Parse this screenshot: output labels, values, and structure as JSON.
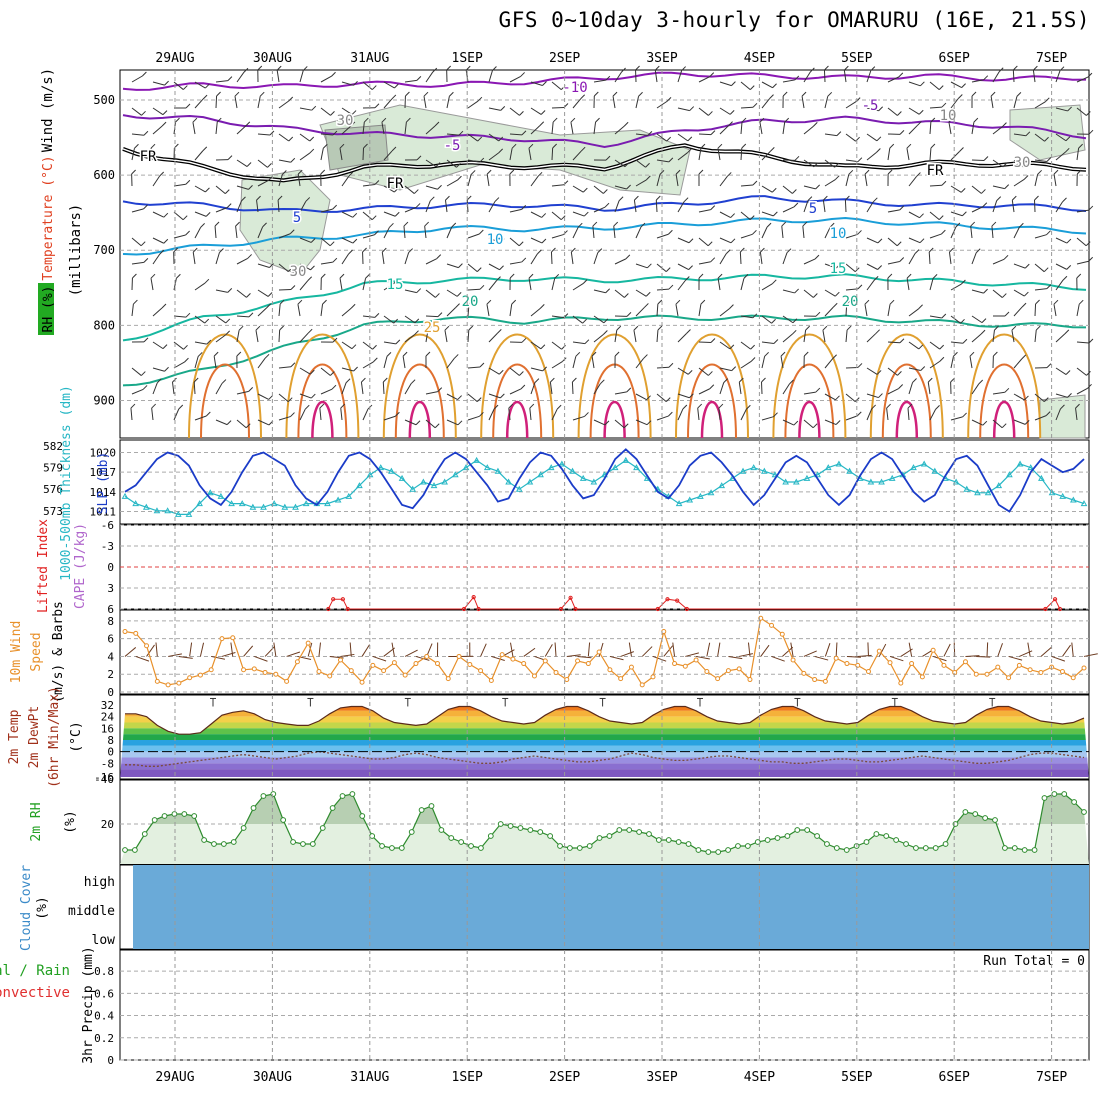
{
  "title": "GFS 0~10day 3-hourly for OMARURU (16E, 21.5S)",
  "days": [
    "29AUG",
    "30AUG",
    "31AUG",
    "1SEP",
    "2SEP",
    "3SEP",
    "4SEP",
    "5SEP",
    "6SEP",
    "7SEP"
  ],
  "colors": {
    "isotherm_minus10": "#8a17b3",
    "isotherm_minus5": "#7a1cb0",
    "isotherm_5": "#2040d0",
    "isotherm_10": "#1a9ed8",
    "isotherm_15": "#16b7a0",
    "isotherm_20": "#19a889",
    "isotherm_25": "#e0a030",
    "thickness": "#27b7c5",
    "slp": "#1b3cc8",
    "wind10m": "#e8902a",
    "lifted_index": "#e02020",
    "rh2m": "#2e8b2e",
    "cloud": "#6aaad8"
  },
  "chart_data": [
    {
      "panel": "upper-air",
      "type": "line",
      "axis_labels": [
        "RH (%)",
        "Temperature (°C)",
        "Wind (m/s)",
        "(millibars)"
      ],
      "y_ticks": [
        "500",
        "600",
        "700",
        "800",
        "900"
      ],
      "ylim": [
        950,
        460
      ],
      "x_days": [
        0.5,
        1.5,
        2.5,
        3.5,
        4.5,
        5.5,
        6.5,
        7.5,
        8.5,
        9.5
      ],
      "contours": [
        {
          "label": "-10",
          "pressure": [
            485,
            480,
            482,
            478,
            480,
            476,
            470,
            465,
            468,
            470,
            468,
            472,
            470
          ]
        },
        {
          "label": "-5",
          "pressure": [
            520,
            525,
            538,
            545,
            548,
            552,
            560,
            540,
            528,
            525,
            530,
            535,
            548
          ]
        },
        {
          "label": "FR",
          "pressure": [
            565,
            590,
            610,
            590,
            585,
            588,
            590,
            560,
            575,
            590,
            585,
            585,
            590
          ]
        },
        {
          "label": "5",
          "pressure": [
            635,
            640,
            648,
            645,
            640,
            640,
            645,
            638,
            630,
            635,
            640,
            640,
            645
          ]
        },
        {
          "label": "10",
          "pressure": [
            705,
            695,
            685,
            680,
            670,
            672,
            670,
            665,
            660,
            660,
            665,
            670,
            675
          ]
        },
        {
          "label": "15",
          "pressure": [
            820,
            790,
            770,
            745,
            740,
            738,
            740,
            738,
            735,
            735,
            740,
            745,
            750
          ]
        },
        {
          "label": "20",
          "pressure": [
            880,
            860,
            830,
            800,
            790,
            795,
            790,
            790,
            790,
            790,
            795,
            800,
            800
          ]
        }
      ],
      "contour_labels": [
        "-10",
        "-5",
        "-5",
        "FR",
        "FR",
        "FR",
        "5",
        "5",
        "10",
        "10",
        "15",
        "15",
        "20",
        "20",
        "25",
        "30",
        "30",
        "30",
        "10"
      ]
    },
    {
      "panel": "thickness-slp",
      "type": "line",
      "axis_labels": [
        "1000-500mb Thickness (dm)",
        "SLP (mb)"
      ],
      "left_ticks": [
        "582",
        "579",
        "576",
        "573"
      ],
      "right_ticks": [
        "1020",
        "1017",
        "1014",
        "1011"
      ],
      "left_ylim": [
        572,
        582
      ],
      "right_ylim": [
        1010,
        1021
      ],
      "series": [
        {
          "name": "1000-500mb Thickness (dm)",
          "values": [
            575,
            574,
            573.5,
            573,
            573,
            572.5,
            572.5,
            574,
            575.5,
            575,
            574,
            574,
            573.5,
            573.5,
            574,
            573.5,
            573.5,
            574,
            574,
            574,
            574.5,
            575,
            576.5,
            578,
            579,
            578.5,
            577.5,
            576,
            577,
            576.5,
            577,
            578,
            579,
            580,
            579,
            578.5,
            577,
            576,
            577,
            578,
            579,
            579.5,
            578.5,
            577.5,
            577,
            578,
            579,
            580,
            579,
            577.5,
            576,
            575,
            574,
            574.5,
            575,
            575.5,
            576.5,
            577.5,
            578.5,
            579,
            578.5,
            578,
            577,
            577,
            577.5,
            578,
            579,
            579.5,
            578.5,
            577.5,
            577,
            577,
            577.5,
            578,
            579,
            579.5,
            578.5,
            577.5,
            577,
            576,
            575.5,
            575.5,
            576.5,
            578,
            579.5,
            579,
            577.5,
            575.5,
            575,
            574.5,
            574
          ]
        },
        {
          "name": "SLP (mb)",
          "values": [
            1014,
            1015,
            1017,
            1019,
            1020,
            1019.5,
            1018,
            1015,
            1013,
            1012,
            1014,
            1017,
            1019.5,
            1020,
            1019,
            1018,
            1015,
            1013,
            1012,
            1014,
            1017,
            1019.5,
            1020,
            1019,
            1017,
            1014.5,
            1012,
            1011.5,
            1013.5,
            1016.5,
            1019,
            1020,
            1019,
            1017,
            1015,
            1012.5,
            1013,
            1016,
            1018.5,
            1020,
            1019.5,
            1017.5,
            1015,
            1013,
            1013.5,
            1016,
            1019,
            1020.5,
            1019,
            1016.5,
            1014,
            1013,
            1015,
            1018,
            1019.5,
            1020,
            1018.5,
            1016.5,
            1014,
            1012,
            1013.5,
            1016,
            1018.5,
            1019.5,
            1018.5,
            1016,
            1013.5,
            1012,
            1013.5,
            1016.5,
            1019,
            1020,
            1019,
            1016.5,
            1014,
            1012.5,
            1013.5,
            1016.5,
            1019,
            1019.5,
            1018,
            1015,
            1012,
            1011,
            1013.5,
            1017,
            1019,
            1018,
            1017,
            1017.5,
            1019
          ]
        }
      ]
    },
    {
      "panel": "instability",
      "type": "line",
      "axis_labels": [
        "Lifted Index",
        "CAPE (J/kg)"
      ],
      "y_ticks": [
        "-6",
        "-3",
        "0",
        "3",
        "6"
      ],
      "ylim": [
        -6,
        6
      ],
      "series": [
        {
          "name": "Lifted Index",
          "values": [
            [
              2.0,
              6
            ],
            [
              2.05,
              4.6
            ],
            [
              2.15,
              4.6
            ],
            [
              2.2,
              6
            ],
            [
              3.4,
              6
            ],
            [
              3.5,
              4.3
            ],
            [
              3.55,
              6
            ],
            [
              4.4,
              6
            ],
            [
              4.5,
              4.4
            ],
            [
              4.55,
              6
            ],
            [
              5.4,
              6
            ],
            [
              5.5,
              4.6
            ],
            [
              5.6,
              4.8
            ],
            [
              5.7,
              6
            ],
            [
              9.4,
              6
            ],
            [
              9.5,
              4.6
            ],
            [
              9.55,
              6
            ]
          ]
        }
      ]
    },
    {
      "panel": "wind10m",
      "type": "line",
      "axis_labels": [
        "10m Wind Speed (m/s) & Barbs"
      ],
      "y_ticks": [
        "0",
        "2",
        "4",
        "6",
        "8"
      ],
      "ylim": [
        0,
        9
      ],
      "series": [
        {
          "name": "10m Wind Speed",
          "values": [
            6.8,
            6.6,
            5.2,
            1.2,
            0.8,
            1.0,
            1.6,
            1.9,
            2.5,
            6.0,
            6.1,
            2.5,
            2.6,
            2.2,
            2.0,
            1.2,
            3.4,
            5.5,
            2.3,
            1.8,
            3.6,
            2.4,
            1.1,
            3.0,
            2.4,
            3.3,
            1.9,
            3.2,
            4.0,
            3.2,
            1.5,
            4.0,
            3.1,
            2.4,
            1.3,
            4.2,
            3.7,
            3.2,
            1.8,
            3.5,
            2.2,
            1.4,
            3.5,
            3.2,
            4.5,
            2.5,
            1.5,
            2.8,
            0.8,
            1.7,
            6.8,
            3.2,
            2.9,
            3.6,
            2.3,
            1.5,
            2.4,
            2.6,
            1.4,
            8.3,
            7.5,
            6.5,
            3.6,
            2.1,
            1.4,
            1.2,
            3.8,
            3.2,
            3.0,
            2.3,
            4.6,
            3.3,
            1.0,
            3.2,
            1.7,
            4.7,
            3.0,
            2.2,
            3.4,
            2.0,
            2.0,
            2.8,
            1.6,
            3.0,
            2.5,
            2.2,
            2.8,
            2.3,
            1.6,
            2.7
          ]
        }
      ]
    },
    {
      "panel": "temperature2m",
      "type": "area",
      "axis_labels": [
        "2m Temp",
        "2m DewPt",
        "(6hr Min/Max)",
        "(°C)"
      ],
      "y_ticks": [
        "32",
        "24",
        "16",
        "8",
        "0",
        "-8",
        "-16",
        "-40"
      ],
      "series": [
        {
          "name": "2m Temp",
          "values": [
            26,
            26,
            24,
            18,
            14,
            12,
            12,
            13,
            19,
            25,
            27,
            28,
            26,
            22,
            20,
            19,
            18,
            18,
            21,
            26,
            30,
            31,
            31,
            28,
            23,
            20,
            19,
            18,
            19,
            24,
            29,
            31,
            31,
            28,
            24,
            21,
            20,
            19,
            20,
            25,
            29,
            31,
            31,
            28,
            24,
            21,
            20,
            19,
            20,
            25,
            29,
            31,
            31,
            28,
            24,
            21,
            20,
            19,
            20,
            25,
            29,
            31,
            31,
            28,
            24,
            21,
            20,
            19,
            20,
            25,
            29,
            31,
            31,
            28,
            24,
            21,
            20,
            19,
            20,
            25,
            29,
            31,
            31,
            28,
            24,
            21,
            20,
            19,
            20,
            23
          ]
        },
        {
          "name": "2m DewPt",
          "values": [
            -9,
            -9,
            -10,
            -10,
            -9,
            -8,
            -7,
            -6,
            -5,
            -4,
            -3,
            -2,
            -3,
            -4,
            -5,
            -4,
            -3,
            -1,
            0,
            -1,
            -2,
            -3,
            -4,
            -5,
            -5,
            -4,
            -2,
            -1,
            -2,
            -4,
            -5,
            -6,
            -7,
            -8,
            -8,
            -7,
            -5,
            -4,
            -3,
            -4,
            -5,
            -6,
            -7,
            -7,
            -6,
            -5,
            -3,
            -1,
            -2,
            -4,
            -5,
            -6,
            -6,
            -5,
            -4,
            -3,
            -3,
            -4,
            -5,
            -6,
            -7,
            -7,
            -8,
            -8,
            -7,
            -6,
            -5,
            -5,
            -6,
            -7,
            -7,
            -6,
            -5,
            -4,
            -3,
            -4,
            -5,
            -6,
            -7,
            -8,
            -8,
            -7,
            -6,
            -4,
            -2,
            -1,
            -1,
            -2,
            -3,
            -4
          ]
        }
      ]
    },
    {
      "panel": "rh2m",
      "type": "area",
      "axis_labels": [
        "2m RH",
        "(%)"
      ],
      "y_ticks": [
        "20"
      ],
      "ylim": [
        0,
        40
      ],
      "series": [
        {
          "name": "2m RH",
          "values": [
            7,
            7,
            15,
            22,
            24,
            25,
            25,
            24,
            12,
            10,
            10,
            11,
            18,
            28,
            34,
            35,
            22,
            11,
            10,
            10,
            18,
            28,
            34,
            35,
            24,
            14,
            9,
            8,
            8,
            16,
            27,
            29,
            17,
            13,
            11,
            9,
            8,
            14,
            20,
            19,
            18,
            17,
            16,
            14,
            9,
            8,
            8,
            9,
            13,
            14,
            17,
            17,
            16,
            15,
            12,
            12,
            11,
            10,
            7,
            6,
            6,
            7,
            9,
            9,
            11,
            12,
            13,
            14,
            17,
            17,
            14,
            10,
            8,
            7,
            9,
            11,
            15,
            14,
            12,
            10,
            8,
            8,
            8,
            10,
            20,
            26,
            25,
            23,
            22,
            8,
            8,
            7,
            7,
            33,
            35,
            35,
            31,
            26
          ]
        }
      ]
    },
    {
      "panel": "cloud-cover",
      "type": "heatmap",
      "axis_labels": [
        "Cloud Cover (%)"
      ],
      "levels": [
        "high",
        "middle",
        "low"
      ],
      "coverage": "full"
    },
    {
      "panel": "precip",
      "type": "bar",
      "axis_labels": [
        "Total / Rain",
        "Convective",
        "3hr Precip (mm)"
      ],
      "y_ticks": [
        "0.8",
        "0.6",
        "0.4",
        "0.2",
        "0"
      ],
      "ylim": [
        0,
        0.9
      ],
      "values": [],
      "run_total": "Run Total = 0"
    }
  ]
}
